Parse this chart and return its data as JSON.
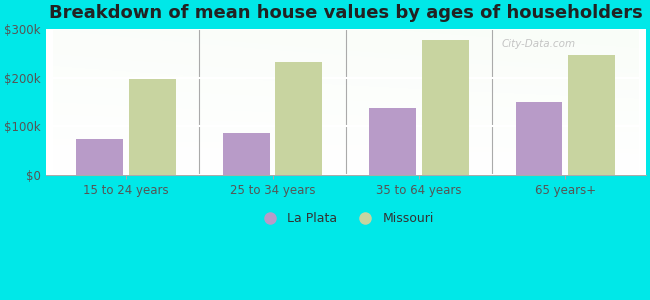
{
  "title": "Breakdown of mean house values by ages of householders",
  "categories": [
    "15 to 24 years",
    "25 to 34 years",
    "35 to 64 years",
    "65 years+"
  ],
  "la_plata": [
    75000,
    87000,
    138000,
    150000
  ],
  "missouri": [
    197000,
    232000,
    278000,
    248000
  ],
  "la_plata_color": "#b89bc8",
  "missouri_color": "#c8d4a0",
  "background_color": "#00e8e8",
  "ylim": [
    0,
    300000
  ],
  "yticks": [
    0,
    100000,
    200000,
    300000
  ],
  "ytick_labels": [
    "$0",
    "$100k",
    "$200k",
    "$300k"
  ],
  "legend_la_plata": "La Plata",
  "legend_missouri": "Missouri",
  "watermark": "City-Data.com",
  "bar_width": 0.32,
  "title_fontsize": 13,
  "tick_fontsize": 8.5,
  "legend_fontsize": 9
}
